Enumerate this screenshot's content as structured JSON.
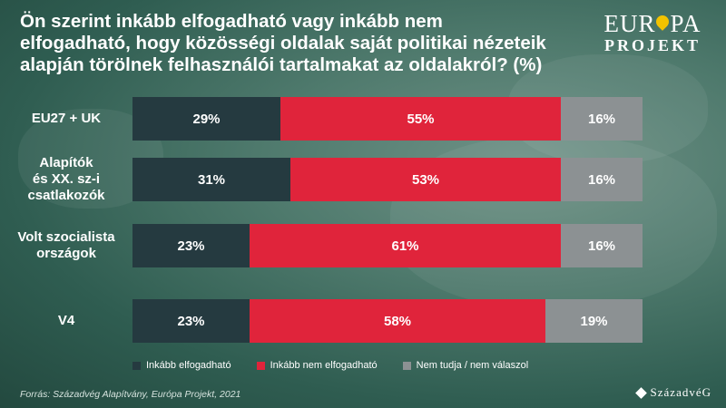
{
  "title": "Ön szerint inkább elfogadható vagy inkább nem elfogadható, hogy közösségi oldalak saját politikai nézeteik alapján törölnek felhasználói tartalmakat az oldalakról? (%)",
  "logo": {
    "top_left": "EUR",
    "top_right": "PA",
    "bottom": "PROJEKT",
    "pin_icon": "location-pin-icon"
  },
  "source": "Forrás: Századvég Alapítvány, Európa Projekt, 2021",
  "brand": "SzázadvéG",
  "colors": {
    "accept": "#253a40",
    "reject": "#e0243b",
    "unknown": "#8c9193"
  },
  "chart_data": {
    "type": "bar",
    "orientation": "horizontal",
    "stacked": true,
    "title": "Ön szerint inkább elfogadható vagy inkább nem elfogadható, hogy közösségi oldalak saját politikai nézeteik alapján törölnek felhasználói tartalmakat az oldalakról? (%)",
    "categories": [
      "EU27 + UK",
      "Alapítók és XX. sz-i csatlakozók",
      "Volt szocialista országok",
      "V4"
    ],
    "category_lines": [
      [
        "EU27 + UK"
      ],
      [
        "Alapítók",
        "és XX. sz-i",
        "csatlakozók"
      ],
      [
        "Volt szocialista",
        "országok"
      ],
      [
        "V4"
      ]
    ],
    "series": [
      {
        "name": "Inkább elfogadható",
        "values": [
          29,
          31,
          23,
          23
        ],
        "color": "#253a40"
      },
      {
        "name": "Inkább nem elfogadható",
        "values": [
          55,
          53,
          61,
          58
        ],
        "color": "#e0243b"
      },
      {
        "name": "Nem tudja / nem válaszol",
        "values": [
          16,
          16,
          16,
          19
        ],
        "color": "#8c9193"
      }
    ],
    "value_suffix": "%",
    "xlim": [
      0,
      100
    ],
    "legend_position": "bottom",
    "grid": false
  }
}
